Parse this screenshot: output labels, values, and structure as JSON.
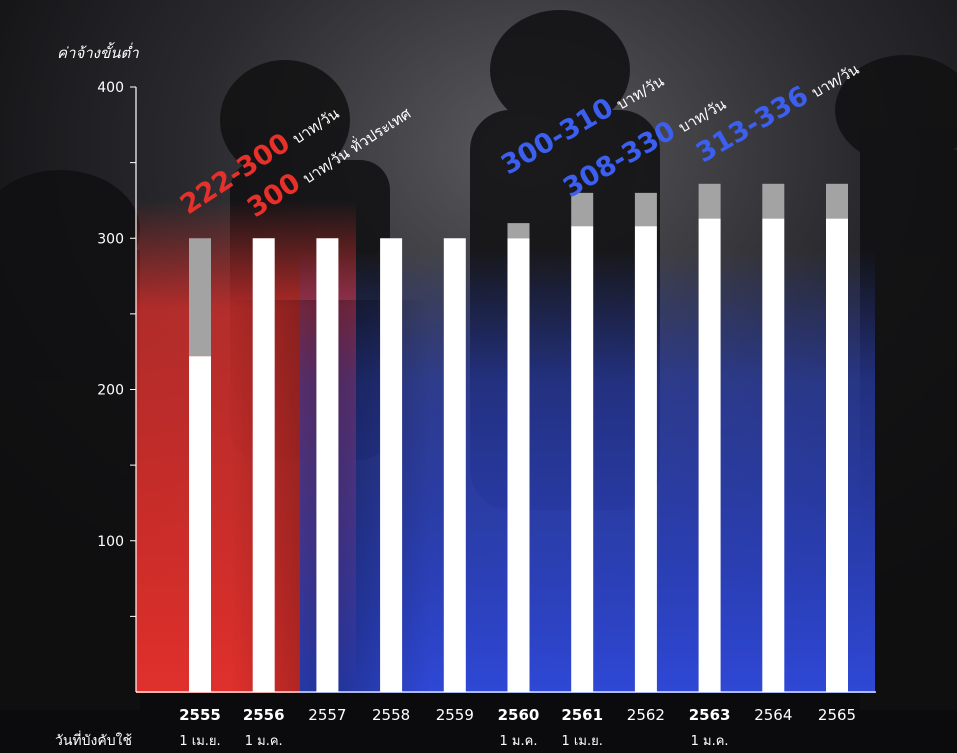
{
  "colors": {
    "red": "#e0302c",
    "blue": "#2f48d6",
    "bar_full": "#ffffff",
    "bar_range": "#a3a3a3",
    "label_red": "#e8302a",
    "label_blue": "#3d5ff0"
  },
  "chart_data": {
    "type": "bar",
    "ylabel": "ค่าจ้างขั้นต่ำ",
    "ylim": [
      0,
      400
    ],
    "yticks": [
      100,
      200,
      300,
      400
    ],
    "xcaption": "วันที่บังคับใช้",
    "categories": [
      "2555",
      "2556",
      "2557",
      "2558",
      "2559",
      "2560",
      "2561",
      "2562",
      "2563",
      "2564",
      "2565"
    ],
    "bold_categories": [
      "2555",
      "2556",
      "2560",
      "2561",
      "2563"
    ],
    "effective_dates": [
      "1 เม.ย.",
      "1 ม.ค.",
      "",
      "",
      "",
      "1 ม.ค.",
      "1 เม.ย.",
      "",
      "1 ม.ค.",
      "",
      ""
    ],
    "series": [
      {
        "name": "min",
        "values": [
          222,
          300,
          300,
          300,
          300,
          300,
          308,
          308,
          313,
          313,
          313
        ]
      },
      {
        "name": "max",
        "values": [
          300,
          300,
          300,
          300,
          300,
          310,
          330,
          330,
          336,
          336,
          336
        ]
      }
    ],
    "annotations": [
      {
        "number": "222-300",
        "unit": "บาท/วัน",
        "color": "red"
      },
      {
        "number": "300",
        "unit": "บาท/วัน ทั่วประเทศ",
        "color": "red"
      },
      {
        "number": "300-310",
        "unit": "บาท/วัน",
        "color": "blue"
      },
      {
        "number": "308-330",
        "unit": "บาท/วัน",
        "color": "blue"
      },
      {
        "number": "313-336",
        "unit": "บาท/วัน",
        "color": "blue"
      }
    ]
  }
}
